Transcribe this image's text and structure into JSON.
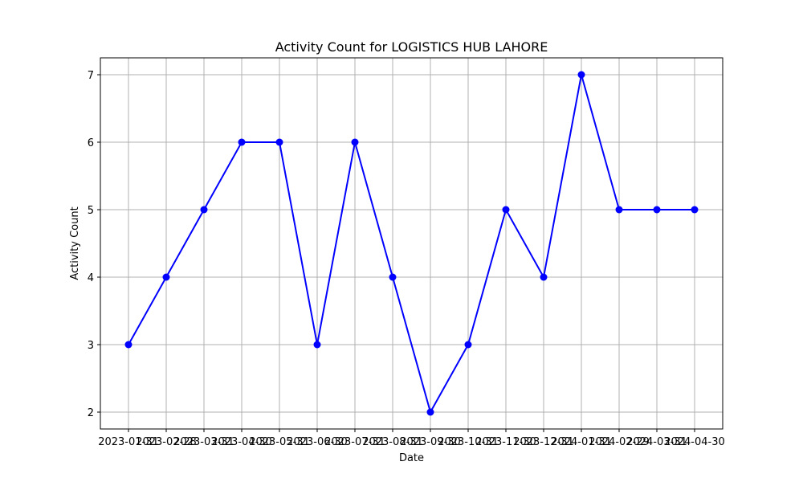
{
  "chart_data": {
    "type": "line",
    "title": "Activity Count for LOGISTICS HUB LAHORE",
    "xlabel": "Date",
    "ylabel": "Activity Count",
    "x": [
      "2023-01-31",
      "2023-02-28",
      "2023-03-31",
      "2023-04-30",
      "2023-05-31",
      "2023-06-30",
      "2023-07-31",
      "2023-08-31",
      "2023-09-30",
      "2023-10-31",
      "2023-11-30",
      "2023-12-31",
      "2024-01-31",
      "2024-02-29",
      "2024-03-31",
      "2024-04-30"
    ],
    "series": [
      {
        "values": [
          3,
          4,
          5,
          6,
          6,
          3,
          6,
          4,
          2,
          3,
          5,
          4,
          7,
          5,
          5,
          5
        ],
        "color": "#0000ff"
      }
    ],
    "yticks": [
      2,
      3,
      4,
      5,
      6,
      7
    ],
    "ylim": [
      1.75,
      7.25
    ],
    "grid": true,
    "marker": "circle"
  }
}
